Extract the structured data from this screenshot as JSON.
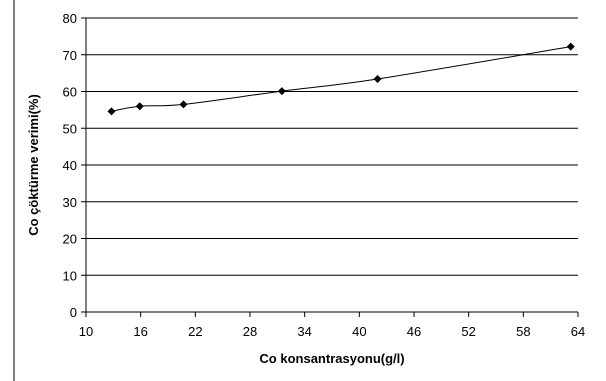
{
  "chart_data": {
    "type": "line",
    "xlabel": "Co konsantrasyonu(g/l)",
    "ylabel": "Co çöktürme verimi(%)",
    "xlim": [
      10,
      64
    ],
    "ylim": [
      0,
      80
    ],
    "x_ticks": [
      10,
      16,
      22,
      28,
      34,
      40,
      46,
      52,
      58,
      64
    ],
    "y_ticks": [
      0,
      10,
      20,
      30,
      40,
      50,
      60,
      70,
      80
    ],
    "grid": "horizontal",
    "marker": "diamond",
    "series": [
      {
        "points": [
          {
            "x": 12.8,
            "y": 54.6
          },
          {
            "x": 15.9,
            "y": 56.0
          },
          {
            "x": 20.7,
            "y": 56.5
          },
          {
            "x": 31.5,
            "y": 60.1
          },
          {
            "x": 42.0,
            "y": 63.4
          },
          {
            "x": 63.2,
            "y": 72.2
          }
        ]
      }
    ]
  }
}
